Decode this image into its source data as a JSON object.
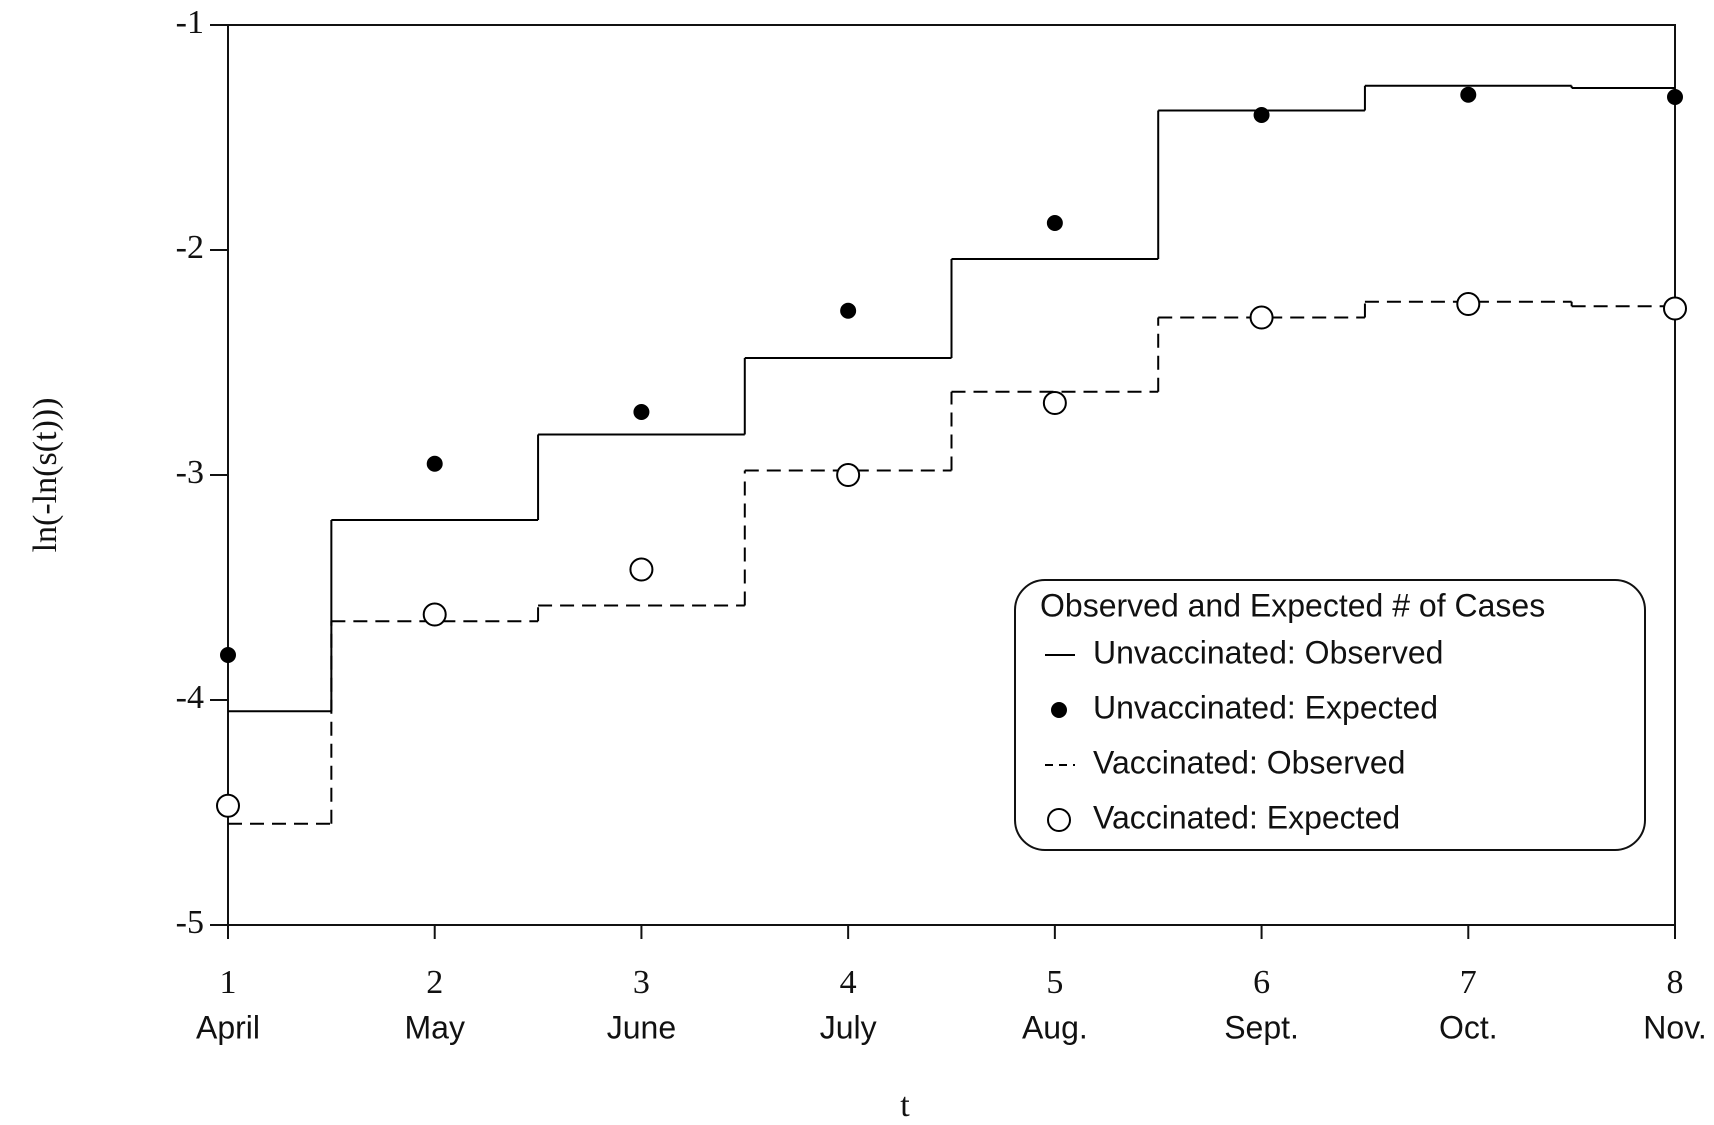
{
  "chart_data": {
    "type": "step-scatter",
    "x_label": "t",
    "y_label": "ln(-ln(s(t)))",
    "x": [
      1,
      2,
      3,
      4,
      5,
      6,
      7,
      8
    ],
    "x_sublabels": [
      "April",
      "May",
      "June",
      "July",
      "Aug.",
      "Sept.",
      "Oct.",
      "Nov."
    ],
    "xlim": [
      1,
      8
    ],
    "xticks": [
      1,
      2,
      3,
      4,
      5,
      6,
      7,
      8
    ],
    "ylim": [
      -5,
      -1
    ],
    "yticks": [
      -5,
      -4,
      -3,
      -2,
      -1
    ],
    "legend_title": "Observed and Expected # of Cases",
    "legend_position": "lower-right",
    "series": [
      {
        "name": "Unvaccinated: Observed",
        "kind": "step",
        "dash": false,
        "color": "#000000",
        "values": [
          -4.05,
          -3.2,
          -2.82,
          -2.48,
          -2.04,
          -1.38,
          -1.27,
          -1.28
        ]
      },
      {
        "name": "Unvaccinated: Expected",
        "kind": "scatter",
        "filled": true,
        "color": "#000000",
        "values": [
          -3.8,
          -2.95,
          -2.72,
          -2.27,
          -1.88,
          -1.4,
          -1.31,
          -1.32
        ]
      },
      {
        "name": "Vaccinated: Observed",
        "kind": "step",
        "dash": true,
        "color": "#000000",
        "values": [
          -4.55,
          -3.65,
          -3.58,
          -2.98,
          -2.63,
          -2.3,
          -2.23,
          -2.25
        ]
      },
      {
        "name": "Vaccinated: Expected",
        "kind": "scatter",
        "filled": false,
        "color": "#000000",
        "values": [
          -4.47,
          -3.62,
          -3.42,
          -3.0,
          -2.68,
          -2.3,
          -2.24,
          -2.26
        ]
      }
    ]
  }
}
